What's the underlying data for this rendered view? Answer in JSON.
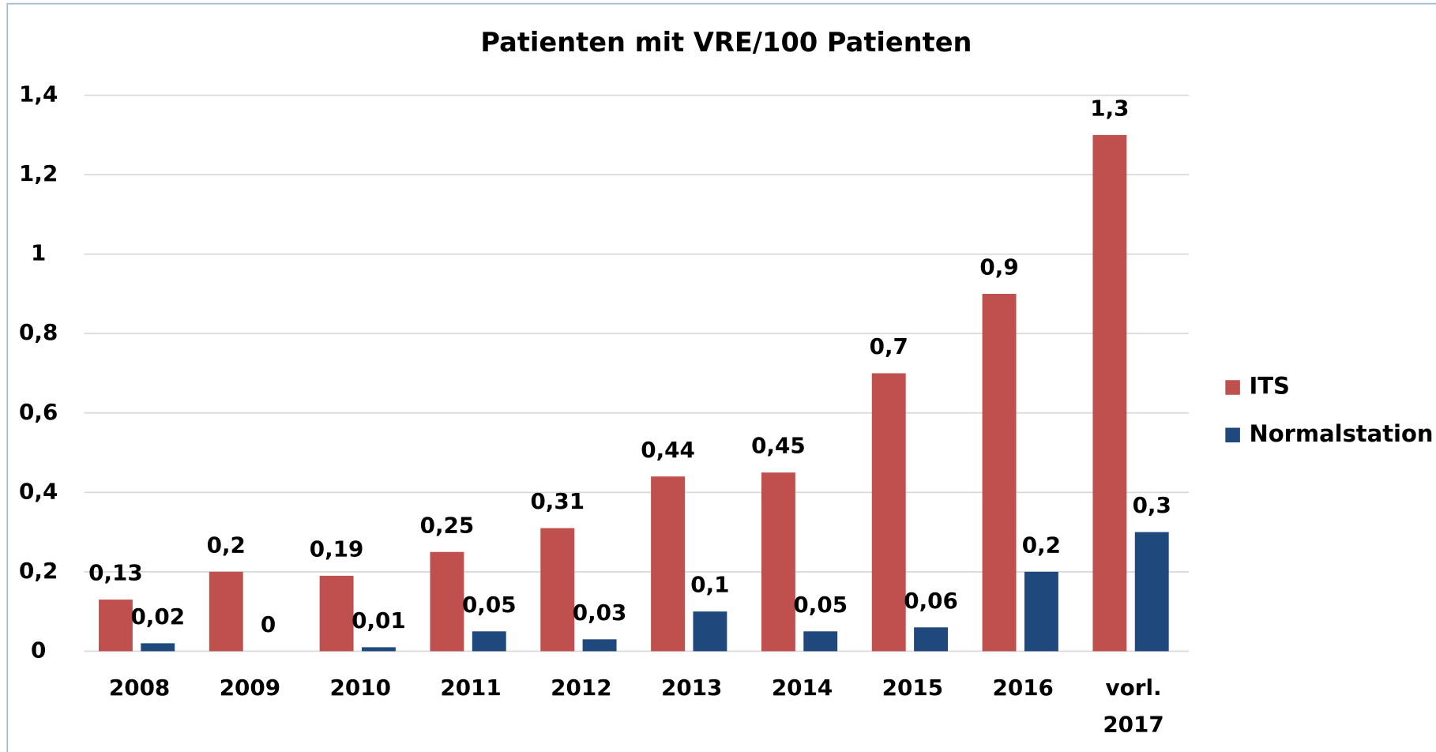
{
  "chart_data": {
    "type": "bar",
    "title": "Patienten mit VRE/100 Patienten",
    "categories": [
      "2008",
      "2009",
      "2010",
      "2011",
      "2012",
      "2013",
      "2014",
      "2015",
      "2016",
      "vorl. 2017"
    ],
    "series": [
      {
        "name": "ITS",
        "color": "#c0504d",
        "values": [
          0.13,
          0.2,
          0.19,
          0.25,
          0.31,
          0.44,
          0.45,
          0.7,
          0.9,
          1.3
        ],
        "value_labels": [
          "0,13",
          "0,2",
          "0,19",
          "0,25",
          "0,31",
          "0,44",
          "0,45",
          "0,7",
          "0,9",
          "1,3"
        ]
      },
      {
        "name": "Normalstation",
        "color": "#1f497d",
        "values": [
          0.02,
          0,
          0.01,
          0.05,
          0.03,
          0.1,
          0.05,
          0.06,
          0.2,
          0.3
        ],
        "value_labels": [
          "0,02",
          "0",
          "0,01",
          "0,05",
          "0,03",
          "0,1",
          "0,05",
          "0,06",
          "0,2",
          "0,3"
        ]
      }
    ],
    "ylim": [
      0,
      1.4
    ],
    "yticks": [
      0,
      {
        "value": 0.2,
        "label": "0,2"
      },
      {
        "value": 0.4,
        "label": "0,4"
      },
      {
        "value": 0.6,
        "label": "0,6"
      },
      {
        "value": 0.8,
        "label": "0,8"
      },
      1,
      {
        "value": 1.2,
        "label": "1,2"
      },
      {
        "value": 1.4,
        "label": "1,4"
      }
    ],
    "grid": true,
    "legend": "right"
  }
}
